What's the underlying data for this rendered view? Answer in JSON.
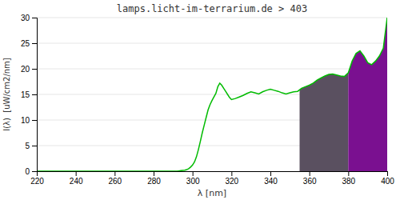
{
  "chart_data": {
    "type": "line",
    "title": "lamps.licht-im-terrarium.de > 403",
    "x_label": "λ [nm]",
    "y_label": "I(λ)  [uW/cm2/nm]",
    "x": [
      220,
      225,
      230,
      235,
      240,
      245,
      250,
      255,
      260,
      265,
      270,
      275,
      280,
      283,
      285,
      287,
      289,
      291,
      292,
      293,
      294,
      295,
      296,
      297,
      298,
      299,
      300,
      301,
      302,
      303,
      304,
      305,
      306,
      307,
      308,
      309,
      310,
      311,
      312,
      313,
      314,
      315,
      316,
      317,
      318,
      319,
      320,
      322,
      324,
      326,
      328,
      330,
      332,
      334,
      336,
      338,
      340,
      342,
      344,
      346,
      348,
      350,
      352,
      354,
      356,
      358,
      360,
      362,
      364,
      366,
      368,
      370,
      372,
      374,
      376,
      378,
      380,
      382,
      384,
      386,
      388,
      390,
      392,
      394,
      396,
      398,
      400
    ],
    "series": [
      {
        "color": "#00bb00",
        "values": [
          0,
          0,
          0,
          0,
          0,
          0,
          0,
          0,
          0,
          0,
          0,
          0,
          0,
          0,
          0,
          0,
          0,
          0,
          0,
          0.05,
          0.1,
          0.15,
          0.2,
          0.3,
          0.5,
          0.8,
          1.2,
          1.8,
          2.8,
          4.2,
          5.8,
          7.5,
          9.0,
          10.5,
          12.0,
          13.0,
          13.8,
          14.5,
          15.2,
          16.5,
          17.2,
          16.8,
          16.2,
          15.6,
          15.0,
          14.4,
          14.0,
          14.2,
          14.5,
          14.8,
          15.2,
          15.5,
          15.3,
          15.1,
          15.5,
          15.8,
          16.0,
          15.8,
          15.6,
          15.3,
          15.1,
          15.3,
          15.5,
          15.6,
          16.2,
          16.5,
          16.8,
          17.2,
          17.8,
          18.2,
          18.6,
          18.9,
          19.0,
          18.8,
          18.6,
          18.5,
          19.2,
          21.5,
          23.0,
          23.5,
          22.5,
          21.2,
          20.8,
          21.5,
          22.5,
          24.0,
          30.0
        ]
      }
    ],
    "spans": [
      {
        "x_start": 355,
        "x_end": 380,
        "color": "#5a5060"
      },
      {
        "x_start": 380,
        "x_end": 400,
        "color": "#7a1090"
      }
    ],
    "xlim": [
      220,
      400
    ],
    "ylim": [
      0,
      30
    ],
    "xticks": [
      220,
      240,
      260,
      280,
      300,
      320,
      340,
      360,
      380,
      400
    ],
    "yticks": [
      0,
      5,
      10,
      15,
      20,
      25,
      30
    ],
    "grid": true
  }
}
